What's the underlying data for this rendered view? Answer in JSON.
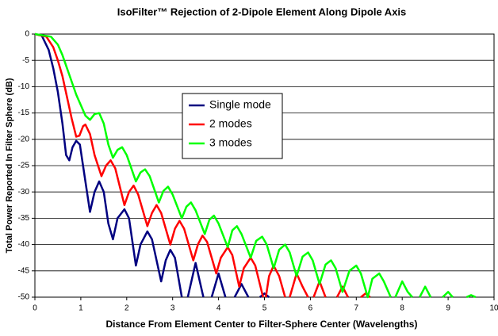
{
  "chart_data": {
    "type": "line",
    "title": "IsoFilter™ Rejection of 2-Dipole Element Along Dipole Axis",
    "x_label": "Distance From Element Center to Filter-Sphere Center (Wavelengths)",
    "y_label": "Total Power Reported In Filter Sphere (dB)",
    "xlim": [
      0,
      10
    ],
    "ylim": [
      -50,
      0
    ],
    "xticks": [
      0,
      1,
      2,
      3,
      4,
      5,
      6,
      7,
      8,
      9,
      10
    ],
    "yticks": [
      0,
      -5,
      -10,
      -15,
      -20,
      -25,
      -30,
      -35,
      -40,
      -45,
      -50
    ],
    "grid": true,
    "series": [
      {
        "name": "Single mode",
        "color": "#000080",
        "x": [
          0,
          0.15,
          0.3,
          0.4,
          0.5,
          0.6,
          0.68,
          0.75,
          0.82,
          0.9,
          0.98,
          1.1,
          1.2,
          1.3,
          1.4,
          1.5,
          1.6,
          1.7,
          1.8,
          1.95,
          2.05,
          2.2,
          2.3,
          2.45,
          2.55,
          2.75,
          2.85,
          2.95,
          3.05,
          3.2,
          3.25,
          3.33,
          3.5,
          3.67,
          3.75,
          3.85,
          4.0,
          4.15,
          4.25,
          4.35,
          4.5,
          4.65,
          4.8,
          4.9,
          5.0,
          5.1
        ],
        "values": [
          0,
          -0.3,
          -3,
          -6.5,
          -11,
          -17,
          -23,
          -24,
          -21.5,
          -20.3,
          -21,
          -28,
          -33.8,
          -30,
          -28,
          -30,
          -36,
          -39,
          -35,
          -33.3,
          -35,
          -44,
          -40,
          -37.5,
          -39,
          -47,
          -43,
          -41,
          -42.5,
          -50,
          null,
          -50,
          -43.5,
          -50,
          null,
          -50,
          -45.5,
          -50,
          null,
          -50,
          -47.5,
          -50,
          null,
          -50,
          -49.3,
          -50
        ]
      },
      {
        "name": "2 modes",
        "color": "#ff0000",
        "x": [
          0,
          0.25,
          0.4,
          0.5,
          0.6,
          0.7,
          0.8,
          0.9,
          0.97,
          1.05,
          1.1,
          1.2,
          1.3,
          1.45,
          1.55,
          1.65,
          1.75,
          1.95,
          2.05,
          2.15,
          2.25,
          2.45,
          2.55,
          2.65,
          2.75,
          2.95,
          3.05,
          3.15,
          3.25,
          3.45,
          3.55,
          3.65,
          3.75,
          3.95,
          4.05,
          4.2,
          4.3,
          4.45,
          4.55,
          4.7,
          4.8,
          4.97,
          5.0,
          5.03,
          5.1,
          5.2,
          5.32,
          5.45,
          5.5,
          5.55,
          5.7,
          5.83,
          5.95,
          6.0,
          6.07,
          6.2,
          6.33,
          6.45,
          6.58,
          6.7,
          6.82,
          6.95,
          7.1,
          7.2,
          7.3
        ],
        "values": [
          0,
          -0.5,
          -2.5,
          -5,
          -8,
          -12,
          -16,
          -19.5,
          -19.3,
          -17.5,
          -17.2,
          -19,
          -23,
          -27,
          -25,
          -24,
          -25.5,
          -32.5,
          -30,
          -28.8,
          -30.5,
          -36.5,
          -34,
          -32.5,
          -34,
          -40,
          -37,
          -35.5,
          -37,
          -43,
          -40,
          -38.3,
          -39.5,
          -45.5,
          -42.5,
          -40.5,
          -42,
          -48,
          -44.5,
          -42.5,
          -44,
          -50,
          null,
          -50,
          -46,
          -44,
          -46,
          -50,
          null,
          -50,
          -45.5,
          -48,
          -50,
          null,
          -50,
          -47,
          -50,
          null,
          -50,
          -48,
          -50,
          null,
          -50,
          -49.3,
          -50
        ]
      },
      {
        "name": "3 modes",
        "color": "#00ff00",
        "x": [
          0,
          0.35,
          0.5,
          0.6,
          0.7,
          0.8,
          0.9,
          1.0,
          1.1,
          1.2,
          1.3,
          1.4,
          1.5,
          1.6,
          1.7,
          1.8,
          1.9,
          2.0,
          2.2,
          2.3,
          2.4,
          2.5,
          2.7,
          2.8,
          2.9,
          3.0,
          3.2,
          3.3,
          3.4,
          3.5,
          3.7,
          3.8,
          3.9,
          4.0,
          4.2,
          4.3,
          4.4,
          4.5,
          4.7,
          4.82,
          4.95,
          5.05,
          5.2,
          5.32,
          5.45,
          5.55,
          5.7,
          5.83,
          5.95,
          6.05,
          6.2,
          6.33,
          6.45,
          6.55,
          6.7,
          6.85,
          7.0,
          7.1,
          7.25,
          7.35,
          7.5,
          7.6,
          7.75,
          7.8,
          7.85,
          8.0,
          8.12,
          8.22,
          8.3,
          8.38,
          8.5,
          8.62,
          8.75,
          8.88,
          9.0,
          9.1,
          9.25,
          9.4,
          9.5,
          9.6
        ],
        "values": [
          0,
          -0.5,
          -2,
          -4,
          -6.5,
          -9,
          -11.5,
          -13.5,
          -15.5,
          -16.3,
          -15.2,
          -15,
          -17,
          -21,
          -23.5,
          -22,
          -21.5,
          -23,
          -28,
          -26.3,
          -25.7,
          -27,
          -32,
          -29.8,
          -29,
          -30.5,
          -35,
          -32.8,
          -32,
          -33.5,
          -38,
          -35.3,
          -34.5,
          -36,
          -40.5,
          -37.3,
          -36.5,
          -38,
          -42.5,
          -39.3,
          -38.5,
          -40,
          -44.5,
          -41,
          -40,
          -41.5,
          -46,
          -42.3,
          -41.5,
          -43,
          -47.5,
          -43.8,
          -43,
          -44.5,
          -49,
          -45,
          -44,
          -45.5,
          -50,
          -46.5,
          -45.5,
          -47,
          -50,
          null,
          -50,
          -47,
          -49,
          -50,
          null,
          -50,
          -48,
          -50,
          null,
          -50,
          -49,
          -50,
          null,
          -50,
          -49.6,
          -50
        ]
      }
    ]
  }
}
